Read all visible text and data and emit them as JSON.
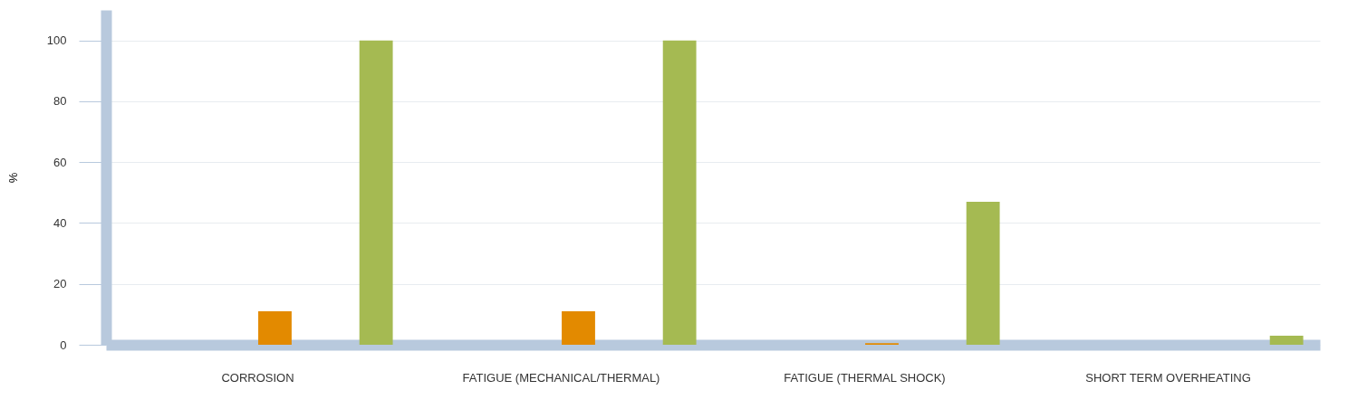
{
  "chart_data": {
    "type": "bar",
    "ylabel": "%",
    "categories": [
      "CORROSION",
      "FATIGUE (MECHANICAL/THERMAL)",
      "FATIGUE (THERMAL SHOCK)",
      "SHORT TERM OVERHEATING"
    ],
    "series": [
      {
        "color": "#e38a00",
        "values": [
          11,
          11,
          0.5,
          0
        ]
      },
      {
        "color": "#a5ba52",
        "values": [
          100,
          100,
          47,
          3
        ]
      }
    ],
    "ylim": [
      0,
      110
    ],
    "yticks": [
      0,
      20,
      40,
      60,
      80,
      100
    ],
    "grid": "y",
    "legend": false
  }
}
